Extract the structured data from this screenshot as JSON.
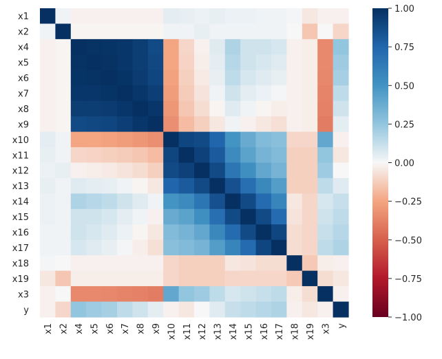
{
  "chart_data": {
    "type": "heatmap",
    "title": "",
    "xlabel": "",
    "ylabel": "",
    "labels": [
      "x1",
      "x2",
      "x4",
      "x5",
      "x6",
      "x7",
      "x8",
      "x9",
      "x10",
      "x11",
      "x12",
      "x13",
      "x14",
      "x15",
      "x16",
      "x17",
      "x18",
      "x19",
      "x3",
      "y"
    ],
    "matrix": [
      [
        1.0,
        0.02,
        -0.02,
        -0.02,
        -0.02,
        -0.02,
        -0.02,
        -0.02,
        0.05,
        0.04,
        0.03,
        0.04,
        0.03,
        0.03,
        0.02,
        0.02,
        0.01,
        -0.05,
        -0.02,
        -0.02
      ],
      [
        0.02,
        1.0,
        -0.01,
        -0.01,
        -0.01,
        -0.01,
        -0.01,
        -0.01,
        0.02,
        0.02,
        0.04,
        0.02,
        0.02,
        0.02,
        0.02,
        0.02,
        0.0,
        -0.15,
        0.0,
        -0.1
      ],
      [
        -0.02,
        -0.01,
        1.0,
        0.99,
        0.98,
        0.97,
        0.94,
        0.88,
        -0.25,
        -0.1,
        -0.02,
        0.06,
        0.18,
        0.1,
        0.1,
        0.08,
        -0.02,
        -0.03,
        -0.35,
        0.25
      ],
      [
        -0.02,
        -0.01,
        0.99,
        1.0,
        0.99,
        0.97,
        0.94,
        0.89,
        -0.25,
        -0.11,
        -0.03,
        0.05,
        0.16,
        0.1,
        0.08,
        0.06,
        -0.02,
        -0.03,
        -0.35,
        0.22
      ],
      [
        -0.02,
        -0.01,
        0.98,
        0.99,
        1.0,
        0.98,
        0.95,
        0.9,
        -0.26,
        -0.12,
        -0.04,
        0.04,
        0.14,
        0.08,
        0.06,
        0.04,
        -0.02,
        -0.03,
        -0.36,
        0.2
      ],
      [
        -0.02,
        -0.01,
        0.97,
        0.97,
        0.98,
        1.0,
        0.97,
        0.93,
        -0.28,
        -0.13,
        -0.06,
        0.02,
        0.1,
        0.05,
        0.03,
        0.01,
        -0.02,
        -0.03,
        -0.37,
        0.14
      ],
      [
        -0.02,
        -0.01,
        0.94,
        0.94,
        0.95,
        0.97,
        1.0,
        0.97,
        -0.3,
        -0.15,
        -0.08,
        -0.01,
        0.06,
        0.02,
        -0.01,
        -0.03,
        -0.02,
        -0.03,
        -0.38,
        0.1
      ],
      [
        -0.02,
        -0.01,
        0.88,
        0.89,
        0.9,
        0.93,
        0.97,
        1.0,
        -0.33,
        -0.18,
        -0.12,
        -0.05,
        0.02,
        -0.02,
        -0.05,
        -0.07,
        -0.02,
        -0.03,
        -0.4,
        0.05
      ],
      [
        0.05,
        0.02,
        -0.25,
        -0.25,
        -0.26,
        -0.28,
        -0.3,
        -0.33,
        1.0,
        0.9,
        0.88,
        0.75,
        0.5,
        0.38,
        0.3,
        0.28,
        -0.1,
        -0.1,
        0.4,
        -0.02
      ],
      [
        0.04,
        0.02,
        -0.1,
        -0.11,
        -0.12,
        -0.13,
        -0.15,
        -0.18,
        0.9,
        1.0,
        0.92,
        0.8,
        0.55,
        0.42,
        0.34,
        0.3,
        -0.12,
        -0.12,
        0.25,
        -0.05
      ],
      [
        0.03,
        0.04,
        -0.02,
        -0.03,
        -0.04,
        -0.06,
        -0.08,
        -0.12,
        0.88,
        0.92,
        1.0,
        0.88,
        0.66,
        0.52,
        0.4,
        0.34,
        -0.12,
        -0.12,
        0.22,
        0.0
      ],
      [
        0.04,
        0.02,
        0.06,
        0.05,
        0.04,
        0.02,
        -0.01,
        -0.05,
        0.75,
        0.8,
        0.88,
        1.0,
        0.85,
        0.7,
        0.56,
        0.45,
        -0.12,
        -0.12,
        0.14,
        0.06
      ],
      [
        0.03,
        0.02,
        0.18,
        0.16,
        0.14,
        0.1,
        0.06,
        0.02,
        0.5,
        0.55,
        0.66,
        0.85,
        1.0,
        0.88,
        0.72,
        0.58,
        -0.05,
        -0.1,
        0.08,
        0.12
      ],
      [
        0.03,
        0.02,
        0.1,
        0.1,
        0.08,
        0.05,
        0.02,
        -0.02,
        0.38,
        0.42,
        0.52,
        0.7,
        0.88,
        1.0,
        0.88,
        0.72,
        -0.06,
        -0.1,
        0.1,
        0.14
      ],
      [
        0.02,
        0.02,
        0.1,
        0.08,
        0.06,
        0.03,
        -0.01,
        -0.05,
        0.3,
        0.34,
        0.4,
        0.56,
        0.72,
        0.88,
        1.0,
        0.9,
        -0.08,
        -0.1,
        0.12,
        0.16
      ],
      [
        0.02,
        0.02,
        0.08,
        0.06,
        0.04,
        0.01,
        -0.03,
        -0.07,
        0.28,
        0.3,
        0.34,
        0.45,
        0.58,
        0.72,
        0.9,
        1.0,
        -0.08,
        -0.1,
        0.14,
        0.18
      ],
      [
        0.01,
        0.0,
        -0.02,
        -0.02,
        -0.02,
        -0.02,
        -0.02,
        -0.02,
        -0.1,
        -0.12,
        -0.12,
        -0.12,
        -0.05,
        -0.06,
        -0.08,
        -0.08,
        1.0,
        -0.14,
        -0.03,
        -0.02
      ],
      [
        -0.05,
        -0.15,
        -0.03,
        -0.03,
        -0.03,
        -0.03,
        -0.03,
        -0.03,
        -0.1,
        -0.12,
        -0.12,
        -0.12,
        -0.1,
        -0.1,
        -0.1,
        -0.1,
        -0.14,
        1.0,
        -0.08,
        -0.05
      ],
      [
        -0.02,
        0.0,
        -0.35,
        -0.35,
        -0.36,
        -0.37,
        -0.38,
        -0.4,
        0.4,
        0.25,
        0.22,
        0.14,
        0.08,
        0.1,
        0.12,
        0.14,
        -0.03,
        -0.08,
        1.0,
        -0.02
      ],
      [
        -0.02,
        -0.1,
        0.25,
        0.22,
        0.2,
        0.14,
        0.1,
        0.05,
        -0.02,
        -0.05,
        0.0,
        0.06,
        0.12,
        0.14,
        0.16,
        0.18,
        -0.02,
        -0.05,
        -0.02,
        1.0
      ]
    ],
    "vmin": -1.0,
    "vmax": 1.0,
    "colormap": "RdBu",
    "colorbar": {
      "ticks": [
        1.0,
        0.75,
        0.5,
        0.25,
        0.0,
        -0.25,
        -0.5,
        -0.75,
        -1.0
      ],
      "tick_labels": [
        "1.00",
        "0.75",
        "0.50",
        "0.25",
        "0.00",
        "−0.25",
        "−0.50",
        "−0.75",
        "−1.00"
      ]
    },
    "grid": false,
    "x_tick_rotation": 90
  }
}
